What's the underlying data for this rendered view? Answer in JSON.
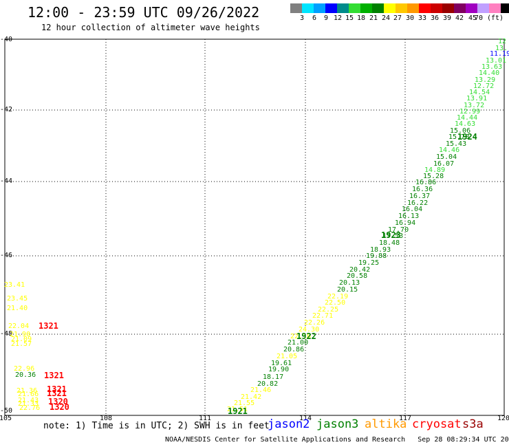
{
  "title": "12:00 - 23:59 UTC 09/26/2022",
  "subtitle": "12 hour collection of altimeter wave heights",
  "legend": {
    "colors": [
      "#808080",
      "#00e5ff",
      "#00a0ff",
      "#0000ff",
      "#008b8b",
      "#33dd33",
      "#00b000",
      "#008000",
      "#ffff00",
      "#ffc800",
      "#ff9900",
      "#ff0000",
      "#cc0000",
      "#990000",
      "#800060",
      "#a000c0",
      "#c0a0ff",
      "#ff80c0",
      "#000000"
    ],
    "ticks": [
      "3",
      "6",
      "9",
      "12",
      "15",
      "18",
      "21",
      "24",
      "27",
      "30",
      "33",
      "36",
      "39",
      "42",
      "45",
      "70 (ft)"
    ]
  },
  "axes": {
    "lat_labels": [
      "-40",
      "-42",
      "-44",
      "-46",
      "-48",
      "-50"
    ],
    "lon_labels": [
      "105",
      "108",
      "111",
      "114",
      "117",
      "120"
    ]
  },
  "observations": [
    {
      "v": "12",
      "c": "#33dd33"
    },
    {
      "v": "13.",
      "c": "#33dd33"
    },
    {
      "v": "11.19",
      "c": "#0000ff"
    },
    {
      "v": "13.01",
      "c": "#33dd33"
    },
    {
      "v": "13.63",
      "c": "#33dd33"
    },
    {
      "v": "14.40",
      "c": "#33dd33"
    },
    {
      "v": "13.29",
      "c": "#33dd33"
    },
    {
      "v": "12.72",
      "c": "#33dd33"
    },
    {
      "v": "14.54",
      "c": "#33dd33"
    },
    {
      "v": "13.91",
      "c": "#33dd33"
    },
    {
      "v": "13.72",
      "c": "#33dd33"
    },
    {
      "v": "12.99",
      "c": "#33dd33"
    },
    {
      "v": "14.44",
      "c": "#33dd33"
    },
    {
      "v": "14.63",
      "c": "#33dd33"
    },
    {
      "v": "15.06",
      "c": "#008000"
    },
    {
      "v": "15.70",
      "c": "#008000"
    },
    {
      "v": "15.43",
      "c": "#008000"
    },
    {
      "v": "14.46",
      "c": "#33dd33"
    },
    {
      "v": "15.04",
      "c": "#008000"
    },
    {
      "v": "16.07",
      "c": "#008000"
    },
    {
      "v": "14.89",
      "c": "#33dd33"
    },
    {
      "v": "15.28",
      "c": "#008000"
    },
    {
      "v": "16.86",
      "c": "#008000"
    },
    {
      "v": "16.36",
      "c": "#008000"
    },
    {
      "v": "16.37",
      "c": "#008000"
    },
    {
      "v": "16.22",
      "c": "#008000"
    },
    {
      "v": "16.04",
      "c": "#008000"
    },
    {
      "v": "16.13",
      "c": "#008000"
    },
    {
      "v": "16.94",
      "c": "#008000"
    },
    {
      "v": "17.70",
      "c": "#008000"
    },
    {
      "v": "17.53",
      "c": "#008000"
    },
    {
      "v": "18.48",
      "c": "#008000"
    },
    {
      "v": "18.93",
      "c": "#008000"
    },
    {
      "v": "19.88",
      "c": "#008000"
    },
    {
      "v": "19.25",
      "c": "#008000"
    },
    {
      "v": "20.42",
      "c": "#008000"
    },
    {
      "v": "20.58",
      "c": "#008000"
    },
    {
      "v": "20.13",
      "c": "#008000"
    },
    {
      "v": "20.15",
      "c": "#008000"
    },
    {
      "v": "22.19",
      "c": "#ffff00"
    },
    {
      "v": "22.50",
      "c": "#ffff00"
    },
    {
      "v": "22.25",
      "c": "#ffff00"
    },
    {
      "v": "22.71",
      "c": "#ffff00"
    },
    {
      "v": "22.26",
      "c": "#ffff00"
    },
    {
      "v": "24.30",
      "c": "#ffff00"
    },
    {
      "v": "22.10",
      "c": "#ffff00"
    },
    {
      "v": "21.00",
      "c": "#008000"
    },
    {
      "v": "20.86",
      "c": "#008000"
    },
    {
      "v": "21.05",
      "c": "#ffff00"
    },
    {
      "v": "19.61",
      "c": "#008000"
    },
    {
      "v": "19.90",
      "c": "#008000"
    },
    {
      "v": "18.17",
      "c": "#008000"
    },
    {
      "v": "20.82",
      "c": "#008000"
    },
    {
      "v": "21.46",
      "c": "#ffff00"
    },
    {
      "v": "21.42",
      "c": "#ffff00"
    },
    {
      "v": "21.55",
      "c": "#ffff00"
    },
    {
      "v": "21.51",
      "c": "#ffff00"
    },
    {
      "v": "23.41",
      "c": "#ffff00"
    },
    {
      "v": "23.45",
      "c": "#ffff00"
    },
    {
      "v": "21.40",
      "c": "#ffff00"
    },
    {
      "v": "22.04",
      "c": "#ffff00"
    },
    {
      "v": "21.90",
      "c": "#ffff00"
    },
    {
      "v": "21.09",
      "c": "#ffff00"
    },
    {
      "v": "21.57",
      "c": "#ffff00"
    },
    {
      "v": "22.96",
      "c": "#ffff00"
    },
    {
      "v": "20.36",
      "c": "#008000"
    },
    {
      "v": "21.36",
      "c": "#ffff00"
    },
    {
      "v": "21.66",
      "c": "#ffff00"
    },
    {
      "v": "21.43",
      "c": "#ffff00"
    },
    {
      "v": "21.33",
      "c": "#ffff00"
    },
    {
      "v": "22.76",
      "c": "#ffff00"
    }
  ],
  "hour_labels": [
    {
      "v": "1924",
      "c": "#008000"
    },
    {
      "v": "1923",
      "c": "#008000"
    },
    {
      "v": "1922",
      "c": "#008000"
    },
    {
      "v": "1921",
      "c": "#008000"
    },
    {
      "v": "1321",
      "c": "#ff0000"
    },
    {
      "v": "1321",
      "c": "#ff0000"
    },
    {
      "v": "1321",
      "c": "#ff0000"
    },
    {
      "v": "1321",
      "c": "#ff0000"
    },
    {
      "v": "1320",
      "c": "#ff0000"
    },
    {
      "v": "1320",
      "c": "#ff0000"
    }
  ],
  "note": "note: 1) Time is in UTC; 2) SWH is in feet",
  "satellites": [
    {
      "name": "jason2",
      "color": "#0000ff"
    },
    {
      "name": "jason3",
      "color": "#008000"
    },
    {
      "name": "altika",
      "color": "#ff9900"
    },
    {
      "name": "cryosat",
      "color": "#ff0000"
    },
    {
      "name": "s3a",
      "color": "#990000"
    }
  ],
  "footer": "NOAA/NESDIS Center for Satellite Applications and Research   Sep 28 08:29:34 UTC 2022"
}
